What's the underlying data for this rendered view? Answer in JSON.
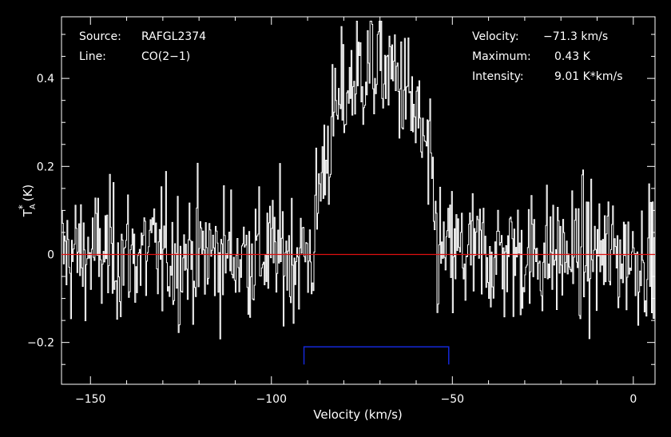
{
  "chart_data": {
    "type": "line",
    "title": "",
    "xlabel": "Velocity (km/s)",
    "ylabel": "T",
    "ylabel_sub": "A",
    "ylabel_sup": "*",
    "ylabel_unit": "(K)",
    "xlim": [
      -158,
      6
    ],
    "ylim": [
      -0.295,
      0.54
    ],
    "x_ticks": [
      {
        "value": -150,
        "label": "−150"
      },
      {
        "value": -100,
        "label": "−100"
      },
      {
        "value": -50,
        "label": "−50"
      },
      {
        "value": 0,
        "label": "0"
      }
    ],
    "y_ticks": [
      {
        "value": -0.2,
        "label": "−0.2"
      },
      {
        "value": 0,
        "label": "0"
      },
      {
        "value": 0.2,
        "label": "0.2"
      },
      {
        "value": 0.4,
        "label": "0.4"
      }
    ],
    "grid": false,
    "baseline": {
      "value": 0,
      "color": "#e01010"
    },
    "integration_window": {
      "x_start": -91,
      "x_end": -51,
      "y": -0.21,
      "y_bottom": -0.25,
      "color": "#1428d8"
    },
    "info_left": [
      {
        "key": "Source:",
        "value": "RAFGL2374"
      },
      {
        "key": "Line:",
        "value": "CO(2−1)"
      }
    ],
    "info_right": [
      {
        "key": "Velocity:",
        "value": "−71.3 km/s"
      },
      {
        "key": "Maximum:",
        "value": "0.43 K"
      },
      {
        "key": "Intensity:",
        "value": "9.01 K*km/s"
      }
    ],
    "series": [
      {
        "color": "#ffffff",
        "x_start": -158,
        "x_step": 0.25,
        "line_center": -71.3,
        "line_peak": 0.43,
        "line_half_width": 17,
        "noise_rms": 0.075,
        "note": ""
      }
    ]
  }
}
